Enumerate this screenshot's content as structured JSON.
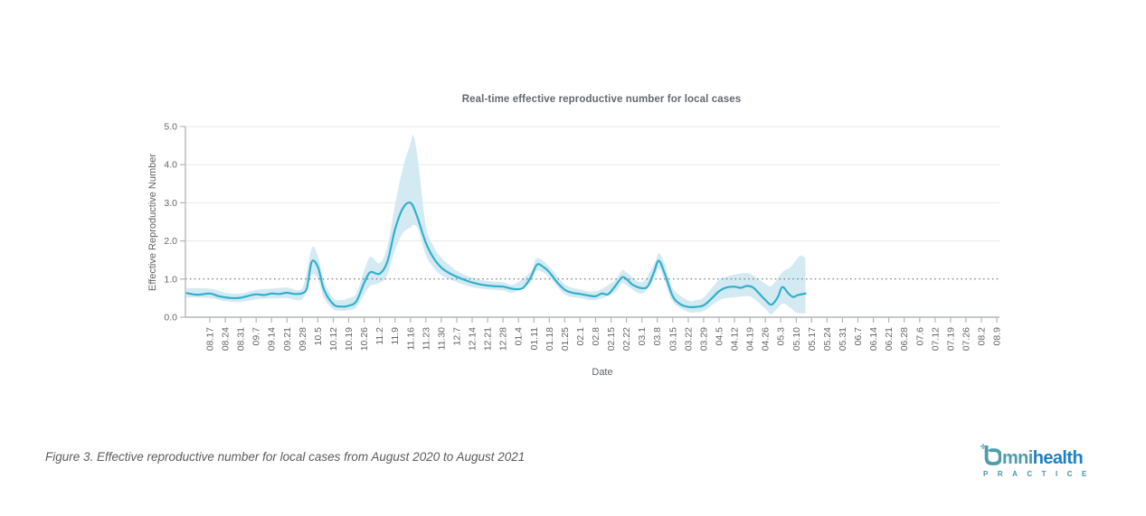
{
  "chart_data": {
    "type": "line",
    "title": "Real-time effective reproductive number for local cases",
    "xlabel": "Date",
    "ylabel": "Effective Reproductive Number",
    "ylim": [
      0.0,
      5.0
    ],
    "ytick_labels": [
      "0.0",
      "1.0",
      "2.0",
      "3.0",
      "4.0",
      "5.0"
    ],
    "reference_line_y": 1.0,
    "grid": {
      "horizontal": true,
      "color": "#e9e9e9"
    },
    "axis_color": "#b3b7ba",
    "label_color": "#666666",
    "reference_line_color": "#5a5a5a",
    "x_tick_labels": [
      "08.17",
      "08.24",
      "08.31",
      "09.7",
      "09.14",
      "09.21",
      "09.28",
      "10.5",
      "10.12",
      "10.19",
      "10.26",
      "11.2",
      "11.9",
      "11.16",
      "11.23",
      "11.30",
      "12.7",
      "12.14",
      "12.21",
      "12.28",
      "01.4",
      "01.11",
      "01.18",
      "01.25",
      "02.1",
      "02.8",
      "02.15",
      "02.22",
      "03.1",
      "03.8",
      "03.15",
      "03.22",
      "03.29",
      "04.5",
      "04.12",
      "04.19",
      "04.26",
      "05.3",
      "05.10",
      "05.17",
      "05.24",
      "05.31",
      "06.7",
      "06.14",
      "06.21",
      "06.28",
      "07.6",
      "07.12",
      "07.19",
      "07.26",
      "08.2",
      "08.9"
    ],
    "series": [
      {
        "name": "effective reproductive number",
        "color": "#30b0cd",
        "points": [
          [
            -1.5,
            0.63
          ],
          [
            -0.8,
            0.59
          ],
          [
            0,
            0.62
          ],
          [
            0.5,
            0.56
          ],
          [
            1,
            0.52
          ],
          [
            1.5,
            0.5
          ],
          [
            2,
            0.51
          ],
          [
            2.5,
            0.56
          ],
          [
            3,
            0.6
          ],
          [
            3.5,
            0.58
          ],
          [
            4,
            0.62
          ],
          [
            4.5,
            0.61
          ],
          [
            5,
            0.64
          ],
          [
            5.5,
            0.61
          ],
          [
            6,
            0.63
          ],
          [
            6.3,
            0.78
          ],
          [
            6.6,
            1.45
          ],
          [
            7,
            1.32
          ],
          [
            7.4,
            0.72
          ],
          [
            8,
            0.34
          ],
          [
            8.5,
            0.28
          ],
          [
            9,
            0.3
          ],
          [
            9.5,
            0.42
          ],
          [
            10,
            0.9
          ],
          [
            10.4,
            1.18
          ],
          [
            11,
            1.14
          ],
          [
            11.5,
            1.45
          ],
          [
            12,
            2.3
          ],
          [
            12.5,
            2.85
          ],
          [
            13,
            3.0
          ],
          [
            13.4,
            2.68
          ],
          [
            14,
            1.95
          ],
          [
            14.5,
            1.55
          ],
          [
            15,
            1.3
          ],
          [
            15.5,
            1.16
          ],
          [
            16,
            1.06
          ],
          [
            16.5,
            0.98
          ],
          [
            17,
            0.91
          ],
          [
            17.5,
            0.86
          ],
          [
            18,
            0.83
          ],
          [
            18.5,
            0.81
          ],
          [
            19,
            0.8
          ],
          [
            19.7,
            0.74
          ],
          [
            20.3,
            0.77
          ],
          [
            20.8,
            1.05
          ],
          [
            21.2,
            1.38
          ],
          [
            21.6,
            1.32
          ],
          [
            22,
            1.18
          ],
          [
            22.5,
            0.92
          ],
          [
            23,
            0.72
          ],
          [
            23.5,
            0.64
          ],
          [
            24,
            0.61
          ],
          [
            24.5,
            0.57
          ],
          [
            25,
            0.55
          ],
          [
            25.4,
            0.62
          ],
          [
            25.8,
            0.6
          ],
          [
            26.2,
            0.78
          ],
          [
            26.7,
            1.04
          ],
          [
            27,
            1.0
          ],
          [
            27.4,
            0.85
          ],
          [
            28,
            0.76
          ],
          [
            28.4,
            0.82
          ],
          [
            28.8,
            1.2
          ],
          [
            29.1,
            1.48
          ],
          [
            29.5,
            1.12
          ],
          [
            30,
            0.55
          ],
          [
            30.5,
            0.34
          ],
          [
            31,
            0.27
          ],
          [
            31.5,
            0.27
          ],
          [
            32,
            0.31
          ],
          [
            32.5,
            0.48
          ],
          [
            33,
            0.68
          ],
          [
            33.5,
            0.78
          ],
          [
            34,
            0.8
          ],
          [
            34.4,
            0.77
          ],
          [
            34.8,
            0.82
          ],
          [
            35.2,
            0.78
          ],
          [
            35.6,
            0.62
          ],
          [
            36,
            0.45
          ],
          [
            36.4,
            0.33
          ],
          [
            36.8,
            0.52
          ],
          [
            37.1,
            0.79
          ],
          [
            37.5,
            0.62
          ],
          [
            37.8,
            0.53
          ],
          [
            38.1,
            0.58
          ],
          [
            38.6,
            0.62
          ]
        ]
      }
    ],
    "confidence_band": {
      "color": "#d4eaf3",
      "points": [
        [
          -1.5,
          0.52,
          0.76
        ],
        [
          0,
          0.5,
          0.75
        ],
        [
          1,
          0.42,
          0.64
        ],
        [
          2,
          0.4,
          0.62
        ],
        [
          3,
          0.47,
          0.72
        ],
        [
          4,
          0.49,
          0.75
        ],
        [
          5,
          0.5,
          0.78
        ],
        [
          6,
          0.48,
          0.78
        ],
        [
          6.6,
          1.1,
          1.8
        ],
        [
          7,
          1.0,
          1.62
        ],
        [
          7.4,
          0.5,
          0.95
        ],
        [
          8,
          0.21,
          0.5
        ],
        [
          8.5,
          0.17,
          0.45
        ],
        [
          9,
          0.18,
          0.5
        ],
        [
          9.5,
          0.26,
          0.62
        ],
        [
          10,
          0.6,
          1.22
        ],
        [
          10.4,
          0.82,
          1.58
        ],
        [
          11,
          0.9,
          1.42
        ],
        [
          11.5,
          1.1,
          1.85
        ],
        [
          12,
          1.75,
          2.95
        ],
        [
          12.5,
          2.2,
          3.9
        ],
        [
          13,
          2.35,
          4.55
        ],
        [
          13.2,
          2.42,
          4.76
        ],
        [
          13.5,
          2.3,
          4.1
        ],
        [
          14,
          1.62,
          2.4
        ],
        [
          14.5,
          1.3,
          1.86
        ],
        [
          15,
          1.1,
          1.56
        ],
        [
          16,
          0.92,
          1.22
        ],
        [
          17,
          0.79,
          1.04
        ],
        [
          18,
          0.73,
          0.95
        ],
        [
          19,
          0.7,
          0.92
        ],
        [
          19.7,
          0.65,
          0.86
        ],
        [
          20.8,
          0.92,
          1.2
        ],
        [
          21.2,
          1.22,
          1.55
        ],
        [
          22,
          1.05,
          1.33
        ],
        [
          23,
          0.6,
          0.86
        ],
        [
          24,
          0.5,
          0.73
        ],
        [
          25,
          0.45,
          0.68
        ],
        [
          26.2,
          0.64,
          0.95
        ],
        [
          26.7,
          0.88,
          1.22
        ],
        [
          27,
          0.84,
          1.18
        ],
        [
          28,
          0.62,
          0.92
        ],
        [
          28.8,
          1.02,
          1.4
        ],
        [
          29.1,
          1.28,
          1.68
        ],
        [
          29.5,
          0.92,
          1.38
        ],
        [
          30,
          0.4,
          0.76
        ],
        [
          31,
          0.14,
          0.44
        ],
        [
          31.5,
          0.13,
          0.45
        ],
        [
          32,
          0.16,
          0.52
        ],
        [
          33,
          0.44,
          0.98
        ],
        [
          33.5,
          0.5,
          1.06
        ],
        [
          34,
          0.52,
          1.12
        ],
        [
          34.8,
          0.55,
          1.16
        ],
        [
          35.2,
          0.5,
          1.1
        ],
        [
          36,
          0.22,
          0.88
        ],
        [
          36.4,
          0.08,
          0.82
        ],
        [
          37.1,
          0.35,
          1.18
        ],
        [
          37.6,
          0.25,
          1.3
        ],
        [
          38,
          0.12,
          1.5
        ],
        [
          38.3,
          0.1,
          1.62
        ],
        [
          38.6,
          0.1,
          1.55
        ]
      ]
    }
  },
  "caption": "Figure 3. Effective reproductive number for local cases from August 2020 to August 2021",
  "logo": {
    "mark": "stylized-o-with-plus",
    "teal_color": "#4e9dac",
    "blue_color": "#1d80c4",
    "name_part1": "mni",
    "name_part2": "health",
    "subtext": "PRACTICE"
  }
}
